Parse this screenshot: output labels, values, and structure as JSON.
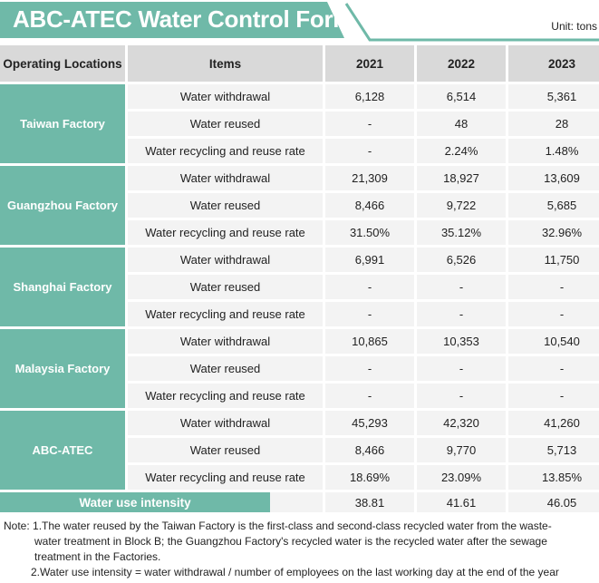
{
  "title": "ABC-ATEC Water Control Form",
  "unit": "Unit: tons",
  "colors": {
    "accent": "#6fb9a8",
    "header": "#d9d9d9",
    "cell": "#f3f3f3"
  },
  "headers": {
    "location": "Operating Locations",
    "items": "Items",
    "years": [
      "2021",
      "2022",
      "2023"
    ]
  },
  "groups": [
    {
      "location": "Taiwan Factory",
      "rows": [
        {
          "item": "Water withdrawal",
          "values": [
            "6,128",
            "6,514",
            "5,361"
          ]
        },
        {
          "item": "Water reused",
          "values": [
            "-",
            "48",
            "28"
          ]
        },
        {
          "item": "Water recycling and reuse rate",
          "values": [
            "-",
            "2.24%",
            "1.48%"
          ]
        }
      ]
    },
    {
      "location": "Guangzhou Factory",
      "rows": [
        {
          "item": "Water withdrawal",
          "values": [
            "21,309",
            "18,927",
            "13,609"
          ]
        },
        {
          "item": "Water reused",
          "values": [
            "8,466",
            "9,722",
            "5,685"
          ]
        },
        {
          "item": "Water recycling and reuse rate",
          "values": [
            "31.50%",
            "35.12%",
            "32.96%"
          ]
        }
      ]
    },
    {
      "location": "Shanghai Factory",
      "rows": [
        {
          "item": "Water withdrawal",
          "values": [
            "6,991",
            "6,526",
            "11,750"
          ]
        },
        {
          "item": "Water reused",
          "values": [
            "-",
            "-",
            "-"
          ]
        },
        {
          "item": "Water recycling and reuse rate",
          "values": [
            "-",
            "-",
            "-"
          ]
        }
      ]
    },
    {
      "location": "Malaysia Factory",
      "rows": [
        {
          "item": "Water withdrawal",
          "values": [
            "10,865",
            "10,353",
            "10,540"
          ]
        },
        {
          "item": "Water reused",
          "values": [
            "-",
            "-",
            "-"
          ]
        },
        {
          "item": "Water recycling and reuse rate",
          "values": [
            "-",
            "-",
            "-"
          ]
        }
      ]
    },
    {
      "location": "ABC-ATEC",
      "rows": [
        {
          "item": "Water withdrawal",
          "values": [
            "45,293",
            "42,320",
            "41,260"
          ]
        },
        {
          "item": "Water reused",
          "values": [
            "8,466",
            "9,770",
            "5,713"
          ]
        },
        {
          "item": "Water recycling and reuse rate",
          "values": [
            "18.69%",
            "23.09%",
            "13.85%"
          ]
        }
      ]
    }
  ],
  "intensity": {
    "label": "Water use intensity",
    "values": [
      "38.81",
      "41.61",
      "46.05"
    ]
  },
  "notes": {
    "prefix": "Note:",
    "n1_a": "1.The water reused by the Taiwan Factory is the first-class and second-class recycled water from the waste-",
    "n1_b": "water treatment in Block B; the Guangzhou Factory's recycled water is the recycled water after the sewage",
    "n1_c": "treatment in the Factories.",
    "n2": "2.Water use intensity = water withdrawal / number of employees on the last working day at the end of the year"
  }
}
